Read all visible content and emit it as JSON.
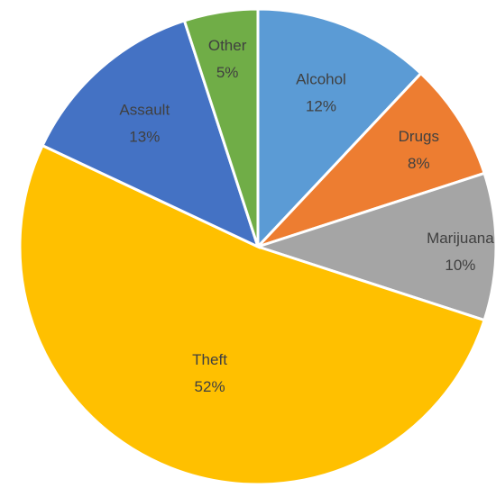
{
  "chart_data": {
    "type": "pie",
    "title": "",
    "start_angle_deg": 0,
    "direction": "clockwise",
    "slices": [
      {
        "label": "Alcohol",
        "pct_label": "12%",
        "value": 12,
        "color": "#5B9BD5",
        "text_color": "#404040"
      },
      {
        "label": "Drugs",
        "pct_label": "8%",
        "value": 8,
        "color": "#ED7D31",
        "text_color": "#404040"
      },
      {
        "label": "Marijuana",
        "pct_label": "10%",
        "value": 10,
        "color": "#A5A5A5",
        "text_color": "#404040"
      },
      {
        "label": "Theft",
        "pct_label": "52%",
        "value": 52,
        "color": "#FFC000",
        "text_color": "#404040"
      },
      {
        "label": "Assault",
        "pct_label": "13%",
        "value": 13,
        "color": "#4472C4",
        "text_color": "#404040"
      },
      {
        "label": "Other",
        "pct_label": "5%",
        "value": 5,
        "color": "#70AD47",
        "text_color": "#404040"
      }
    ],
    "legend": "none",
    "data_labels": "inside"
  }
}
